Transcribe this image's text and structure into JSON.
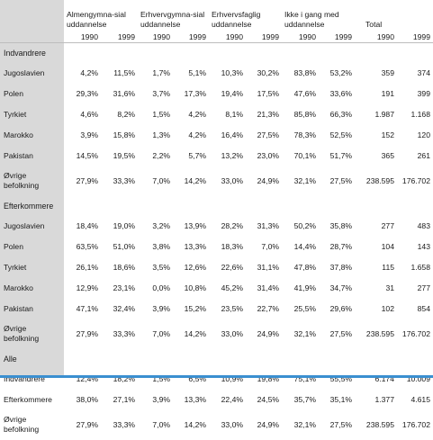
{
  "header": {
    "groups": [
      "Almengymna-sial uddannelse",
      "Erhvervgymna-sial uddannelse",
      "Erhvervsfaglig uddannelse",
      "Ikke i gang med uddannelse",
      "Total"
    ],
    "years": [
      "1990",
      "1999",
      "1990",
      "1999",
      "1990",
      "1999",
      "1990",
      "1999",
      "1990",
      "1999"
    ]
  },
  "sections": [
    {
      "title": "Indvandrere",
      "rows": [
        {
          "label": "Jugoslavien",
          "values": [
            "4,2%",
            "11,5%",
            "1,7%",
            "5,1%",
            "10,3%",
            "30,2%",
            "83,8%",
            "53,2%",
            "359",
            "374"
          ]
        },
        {
          "label": "Polen",
          "values": [
            "29,3%",
            "31,6%",
            "3,7%",
            "17,3%",
            "19,4%",
            "17,5%",
            "47,6%",
            "33,6%",
            "191",
            "399"
          ]
        },
        {
          "label": "Tyrkiet",
          "values": [
            "4,6%",
            "8,2%",
            "1,5%",
            "4,2%",
            "8,1%",
            "21,3%",
            "85,8%",
            "66,3%",
            "1.987",
            "1.168"
          ]
        },
        {
          "label": "Marokko",
          "values": [
            "3,9%",
            "15,8%",
            "1,3%",
            "4,2%",
            "16,4%",
            "27,5%",
            "78,3%",
            "52,5%",
            "152",
            "120"
          ]
        },
        {
          "label": "Pakistan",
          "values": [
            "14,5%",
            "19,5%",
            "2,2%",
            "5,7%",
            "13,2%",
            "23,0%",
            "70,1%",
            "51,7%",
            "365",
            "261"
          ]
        },
        {
          "label": "Øvrige befolkning",
          "values": [
            "27,9%",
            "33,3%",
            "7,0%",
            "14,2%",
            "33,0%",
            "24,9%",
            "32,1%",
            "27,5%",
            "238.595",
            "176.702"
          ]
        }
      ]
    },
    {
      "title": "Efterkommere",
      "rows": [
        {
          "label": "Jugoslavien",
          "values": [
            "18,4%",
            "19,0%",
            "3,2%",
            "13,9%",
            "28,2%",
            "31,3%",
            "50,2%",
            "35,8%",
            "277",
            "483"
          ]
        },
        {
          "label": "Polen",
          "values": [
            "63,5%",
            "51,0%",
            "3,8%",
            "13,3%",
            "18,3%",
            "7,0%",
            "14,4%",
            "28,7%",
            "104",
            "143"
          ]
        },
        {
          "label": "Tyrkiet",
          "values": [
            "26,1%",
            "18,6%",
            "3,5%",
            "12,6%",
            "22,6%",
            "31,1%",
            "47,8%",
            "37,8%",
            "115",
            "1.658"
          ]
        },
        {
          "label": "Marokko",
          "values": [
            "12,9%",
            "23,1%",
            "0,0%",
            "10,8%",
            "45,2%",
            "31,4%",
            "41,9%",
            "34,7%",
            "31",
            "277"
          ]
        },
        {
          "label": "Pakistan",
          "values": [
            "47,1%",
            "32,4%",
            "3,9%",
            "15,2%",
            "23,5%",
            "22,7%",
            "25,5%",
            "29,6%",
            "102",
            "854"
          ]
        },
        {
          "label": "Øvrige befolkning",
          "values": [
            "27,9%",
            "33,3%",
            "7,0%",
            "14,2%",
            "33,0%",
            "24,9%",
            "32,1%",
            "27,5%",
            "238.595",
            "176.702"
          ]
        }
      ]
    },
    {
      "title": "Alle",
      "rows": [
        {
          "label": "Indvandrere",
          "values": [
            "12,4%",
            "18,2%",
            "1,5%",
            "6,5%",
            "10,9%",
            "19,8%",
            "75,1%",
            "55,5%",
            "6.174",
            "10.009"
          ]
        },
        {
          "label": "Efterkommere",
          "values": [
            "38,0%",
            "27,1%",
            "3,9%",
            "13,3%",
            "22,4%",
            "24,5%",
            "35,7%",
            "35,1%",
            "1.377",
            "4.615"
          ]
        },
        {
          "label": "Øvrige befolkning",
          "values": [
            "27,9%",
            "33,3%",
            "7,0%",
            "14,2%",
            "33,0%",
            "24,9%",
            "32,1%",
            "27,5%",
            "238.595",
            "176.702"
          ]
        }
      ]
    }
  ],
  "colors": {
    "label_column": "#d9d9d9",
    "accent_bar": "#3a8fd0",
    "rule": "#bdbdbd"
  }
}
